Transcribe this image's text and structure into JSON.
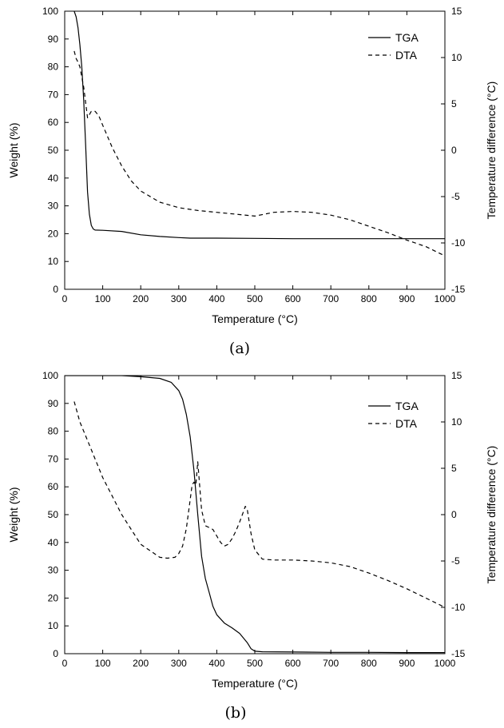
{
  "chart_data": [
    {
      "type": "line",
      "panel_label": "(a)",
      "xlabel": "Temperature (°C)",
      "ylabel": "Weight (%)",
      "y2label": "Temperature difference (°C)",
      "xlim": [
        0,
        1000
      ],
      "ylim": [
        0,
        100
      ],
      "y2lim": [
        -15,
        15
      ],
      "xticks": [
        0,
        100,
        200,
        300,
        400,
        500,
        600,
        700,
        800,
        900,
        1000
      ],
      "yticks": [
        0,
        10,
        20,
        30,
        40,
        50,
        60,
        70,
        80,
        90,
        100
      ],
      "y2ticks": [
        -15,
        -10,
        -5,
        0,
        5,
        10,
        15
      ],
      "legend": "top-right",
      "grid": false,
      "series": [
        {
          "name": "TGA",
          "axis": "left",
          "style": "solid",
          "x": [
            25,
            30,
            35,
            40,
            45,
            50,
            55,
            60,
            65,
            70,
            75,
            80,
            100,
            150,
            200,
            250,
            300,
            330,
            400,
            500,
            600,
            700,
            800,
            900,
            1000
          ],
          "y": [
            100,
            98,
            94,
            88,
            80,
            68,
            52,
            35,
            27,
            23,
            21.7,
            21.3,
            21.2,
            20.8,
            19.6,
            19.0,
            18.6,
            18.4,
            18.4,
            18.3,
            18.2,
            18.2,
            18.2,
            18.2,
            18.2
          ]
        },
        {
          "name": "DTA",
          "axis": "right",
          "style": "dashed",
          "x": [
            25,
            30,
            35,
            40,
            50,
            60,
            70,
            80,
            90,
            100,
            125,
            150,
            175,
            200,
            250,
            300,
            350,
            400,
            450,
            500,
            550,
            600,
            650,
            700,
            750,
            800,
            850,
            900,
            950,
            1000
          ],
          "y": [
            10.7,
            9.9,
            9.5,
            9.0,
            6.8,
            3.5,
            4.2,
            4.2,
            3.7,
            2.7,
            0.3,
            -1.7,
            -3.3,
            -4.4,
            -5.6,
            -6.2,
            -6.5,
            -6.7,
            -6.9,
            -7.1,
            -6.7,
            -6.6,
            -6.7,
            -7.0,
            -7.5,
            -8.2,
            -8.9,
            -9.7,
            -10.4,
            -11.4
          ]
        }
      ]
    },
    {
      "type": "line",
      "panel_label": "(b)",
      "xlabel": "Temperature (°C)",
      "ylabel": "Weight (%)",
      "y2label": "Temperature difference (°C)",
      "xlim": [
        0,
        1000
      ],
      "ylim": [
        0,
        100
      ],
      "y2lim": [
        -15,
        15
      ],
      "xticks": [
        0,
        100,
        200,
        300,
        400,
        500,
        600,
        700,
        800,
        900,
        1000
      ],
      "yticks": [
        0,
        10,
        20,
        30,
        40,
        50,
        60,
        70,
        80,
        90,
        100
      ],
      "y2ticks": [
        -15,
        -10,
        -5,
        0,
        5,
        10,
        15
      ],
      "legend": "top-right",
      "grid": false,
      "series": [
        {
          "name": "TGA",
          "axis": "left",
          "style": "solid",
          "x": [
            0,
            100,
            150,
            200,
            250,
            280,
            300,
            310,
            320,
            330,
            340,
            350,
            360,
            370,
            380,
            390,
            400,
            420,
            440,
            460,
            480,
            490,
            500,
            520,
            600,
            700,
            800,
            900,
            1000
          ],
          "y": [
            100,
            100,
            100,
            99.6,
            99.0,
            97.6,
            94.6,
            91.5,
            86,
            78,
            66,
            50,
            35,
            27,
            22,
            17,
            14,
            11,
            9.3,
            7.3,
            4.0,
            1.8,
            0.9,
            0.7,
            0.6,
            0.5,
            0.5,
            0.4,
            0.4
          ],
          "note": ""
        },
        {
          "name": "DTA",
          "axis": "right",
          "style": "dashed",
          "x": [
            25,
            40,
            60,
            100,
            150,
            200,
            250,
            270,
            290,
            300,
            310,
            320,
            330,
            335,
            340,
            345,
            350,
            360,
            370,
            380,
            390,
            400,
            410,
            420,
            430,
            440,
            450,
            460,
            470,
            475,
            480,
            490,
            500,
            520,
            550,
            600,
            650,
            700,
            750,
            800,
            850,
            900,
            950,
            1000
          ],
          "y": [
            12.2,
            10,
            8,
            4,
            0,
            -3.2,
            -4.6,
            -4.7,
            -4.6,
            -4.2,
            -3.4,
            -1.5,
            1.6,
            3.2,
            3.5,
            3.2,
            5.7,
            0.5,
            -1.2,
            -1.4,
            -1.6,
            -2.3,
            -3.0,
            -3.4,
            -3.2,
            -2.6,
            -1.8,
            -0.8,
            0.3,
            0.9,
            0.6,
            -2.0,
            -3.8,
            -4.8,
            -4.9,
            -4.9,
            -5.0,
            -5.2,
            -5.6,
            -6.3,
            -7.1,
            -8.0,
            -9.0,
            -10.0
          ]
        }
      ]
    }
  ]
}
